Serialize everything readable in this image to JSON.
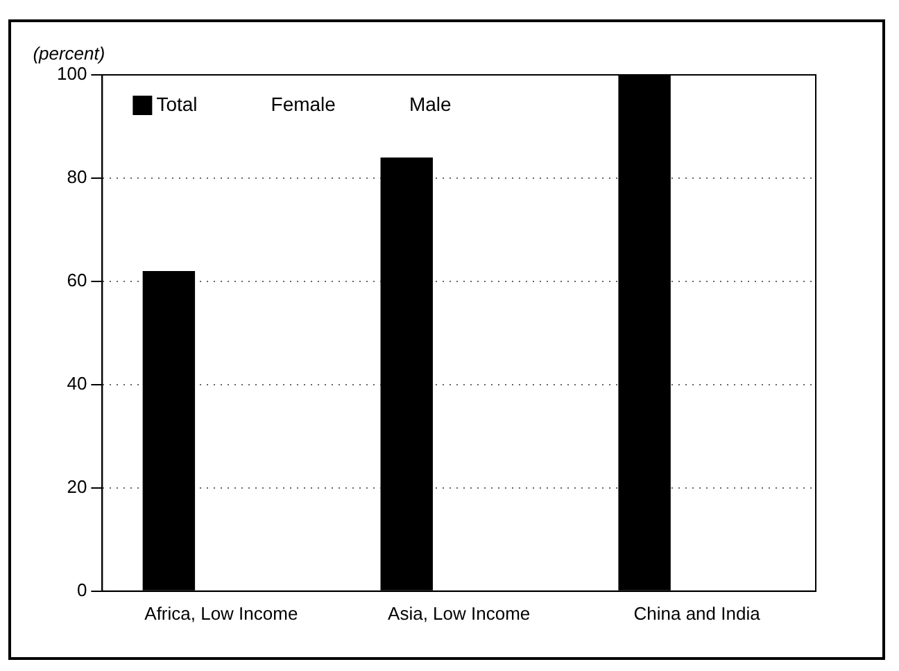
{
  "chart_data": {
    "type": "bar",
    "ylabel": "(percent)",
    "categories": [
      "Africa, Low Income",
      "Asia, Low Income",
      "China and India"
    ],
    "series": [
      {
        "name": "Total",
        "color": "#000000",
        "values": [
          62,
          84,
          100
        ]
      },
      {
        "name": "Female",
        "values": [
          null,
          null,
          null
        ]
      },
      {
        "name": "Male",
        "values": [
          null,
          null,
          null
        ]
      }
    ],
    "ylim": [
      0,
      100
    ],
    "yticks": [
      0,
      20,
      40,
      60,
      80,
      100
    ],
    "grid": "y",
    "legend": "top left"
  }
}
